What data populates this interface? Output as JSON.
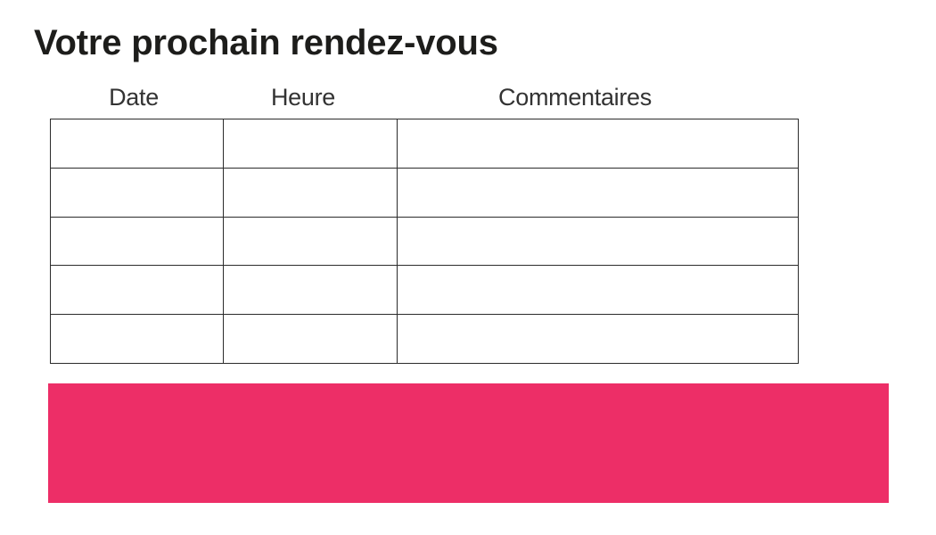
{
  "page": {
    "title": "Votre prochain rendez-vous",
    "background_color": "#ffffff",
    "title_color": "#1d1d1b"
  },
  "table": {
    "headers": [
      "Date",
      "Heure",
      "Commentaires"
    ],
    "header_color": "#333333",
    "border_color": "#2b2b2b",
    "row_count": 5,
    "rows": [
      [
        "",
        "",
        ""
      ],
      [
        "",
        "",
        ""
      ],
      [
        "",
        "",
        ""
      ],
      [
        "",
        "",
        ""
      ],
      [
        "",
        "",
        ""
      ]
    ]
  },
  "banner": {
    "color": "#ed2e67"
  }
}
